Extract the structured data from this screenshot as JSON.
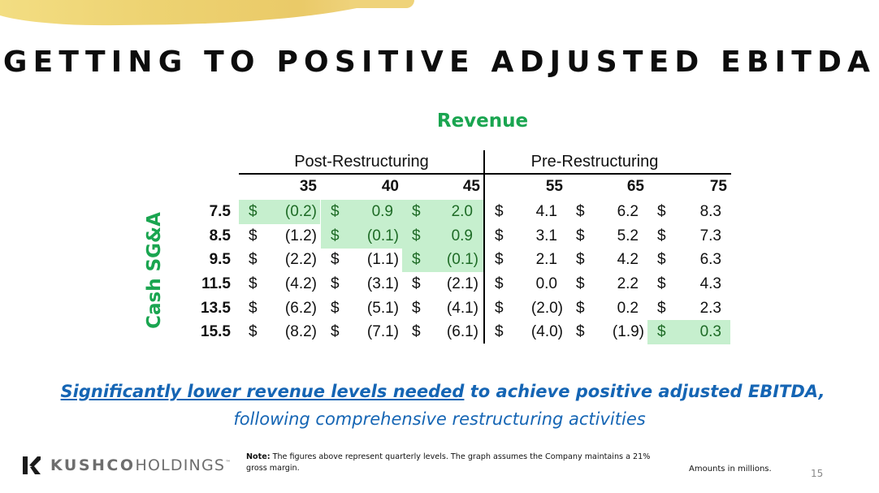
{
  "slide": {
    "title": "GETTING TO POSITIVE ADJUSTED EBITDA",
    "page_number": "15"
  },
  "table": {
    "column_axis_label": "Revenue",
    "row_axis_label": "Cash SG&A",
    "sections": [
      {
        "label": "Post-Restructuring"
      },
      {
        "label": "Pre-Restructuring"
      }
    ],
    "currency_symbol": "$",
    "columns": [
      "35",
      "40",
      "45",
      "55",
      "65",
      "75"
    ],
    "rows": [
      {
        "label": "7.5",
        "values": [
          "(0.2)",
          "0.9",
          "2.0",
          "4.1",
          "6.2",
          "8.3"
        ]
      },
      {
        "label": "8.5",
        "values": [
          "(1.2)",
          "(0.1)",
          "0.9",
          "3.1",
          "5.2",
          "7.3"
        ]
      },
      {
        "label": "9.5",
        "values": [
          "(2.2)",
          "(1.1)",
          "(0.1)",
          "2.1",
          "4.2",
          "6.3"
        ]
      },
      {
        "label": "11.5",
        "values": [
          "(4.2)",
          "(3.1)",
          "(2.1)",
          "0.0",
          "2.2",
          "4.3"
        ]
      },
      {
        "label": "13.5",
        "values": [
          "(6.2)",
          "(5.1)",
          "(4.1)",
          "(2.0)",
          "0.2",
          "2.3"
        ]
      },
      {
        "label": "15.5",
        "values": [
          "(8.2)",
          "(7.1)",
          "(6.1)",
          "(4.0)",
          "(1.9)",
          "0.3"
        ]
      }
    ],
    "highlighted_cells": [
      [
        0,
        0
      ],
      [
        0,
        1
      ],
      [
        0,
        2
      ],
      [
        1,
        1
      ],
      [
        1,
        2
      ],
      [
        2,
        2
      ],
      [
        5,
        5
      ]
    ],
    "highlight_color": "#c6efce",
    "accent_color": "#1aa550"
  },
  "tagline": {
    "line1_underlined": "Significantly lower revenue levels needed",
    "line1_rest": " to achieve positive adjusted EBITDA,",
    "line2": "following comprehensive restructuring activities",
    "color": "#1565b4"
  },
  "footer": {
    "logo_bold": "KUSHCO",
    "logo_light": "HOLDINGS",
    "logo_tm": "™",
    "note_label": "Note:",
    "note_text": " The figures above represent quarterly levels. The graph assumes the Company maintains a 21% gross margin.",
    "amounts_note": "Amounts in millions."
  }
}
